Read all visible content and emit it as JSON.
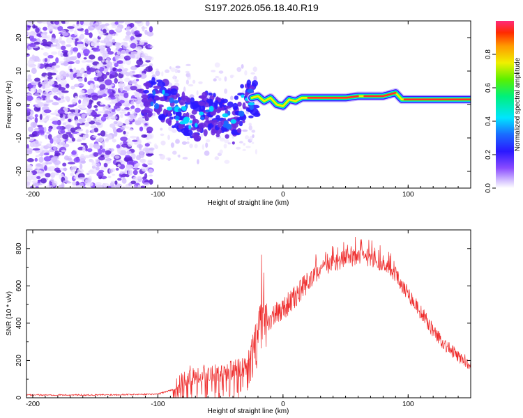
{
  "title": "S197.2026.056.18.40.R19",
  "colors": {
    "snr_line": "#ee2a2a",
    "track": "#ff2a2a",
    "scatter": "#6a2ae0"
  },
  "chart_data": [
    {
      "type": "heatmap",
      "name": "spectrogram",
      "xlabel": "Height of straight line (km)",
      "ylabel": "Frequency (Hz)",
      "xlim": [
        -205,
        150
      ],
      "ylim": [
        -25,
        25
      ],
      "x_ticks": [
        -200,
        -100,
        0,
        100
      ],
      "y_ticks": [
        -20,
        -10,
        0,
        10,
        20
      ],
      "colorbar": {
        "label": "Normalized spectral amplitude",
        "range": [
          0.0,
          1.0
        ],
        "ticks": [
          "0.0",
          "0.2",
          "0.4",
          "0.6",
          "0.8"
        ]
      },
      "signal_track": {
        "x": [
          -110,
          -100,
          -90,
          -80,
          -70,
          -60,
          -50,
          -40,
          -30,
          -25,
          -20,
          -15,
          -10,
          -5,
          0,
          5,
          10,
          15,
          20,
          30,
          40,
          50,
          60,
          70,
          80,
          90,
          95,
          100,
          120,
          150
        ],
        "y": [
          2.5,
          2.0,
          0,
          -3,
          -5,
          -2,
          -4,
          -6,
          2,
          2,
          2.5,
          1,
          2,
          0,
          -0.5,
          1.5,
          1,
          2,
          2,
          2,
          2,
          2,
          2.5,
          2.5,
          2.5,
          3.5,
          1.5,
          1.5,
          1.5,
          1.5
        ]
      }
    },
    {
      "type": "line",
      "name": "snr",
      "xlabel": "Height of straight line (km)",
      "ylabel": "SNR (10 * v/v)",
      "xlim": [
        -205,
        150
      ],
      "ylim": [
        0,
        900
      ],
      "x_ticks": [
        -200,
        -100,
        0,
        100
      ],
      "y_ticks": [
        0,
        200,
        400,
        600,
        800
      ],
      "envelope": {
        "x": [
          -205,
          -150,
          -100,
          -85,
          -75,
          -50,
          -30,
          -22,
          -18,
          -10,
          0,
          10,
          20,
          30,
          40,
          50,
          60,
          70,
          80,
          90,
          100,
          110,
          120,
          130,
          140,
          150
        ],
        "y": [
          15,
          15,
          20,
          50,
          120,
          140,
          160,
          300,
          380,
          420,
          480,
          540,
          620,
          690,
          720,
          750,
          755,
          750,
          720,
          660,
          560,
          460,
          360,
          280,
          220,
          180
        ]
      }
    }
  ]
}
